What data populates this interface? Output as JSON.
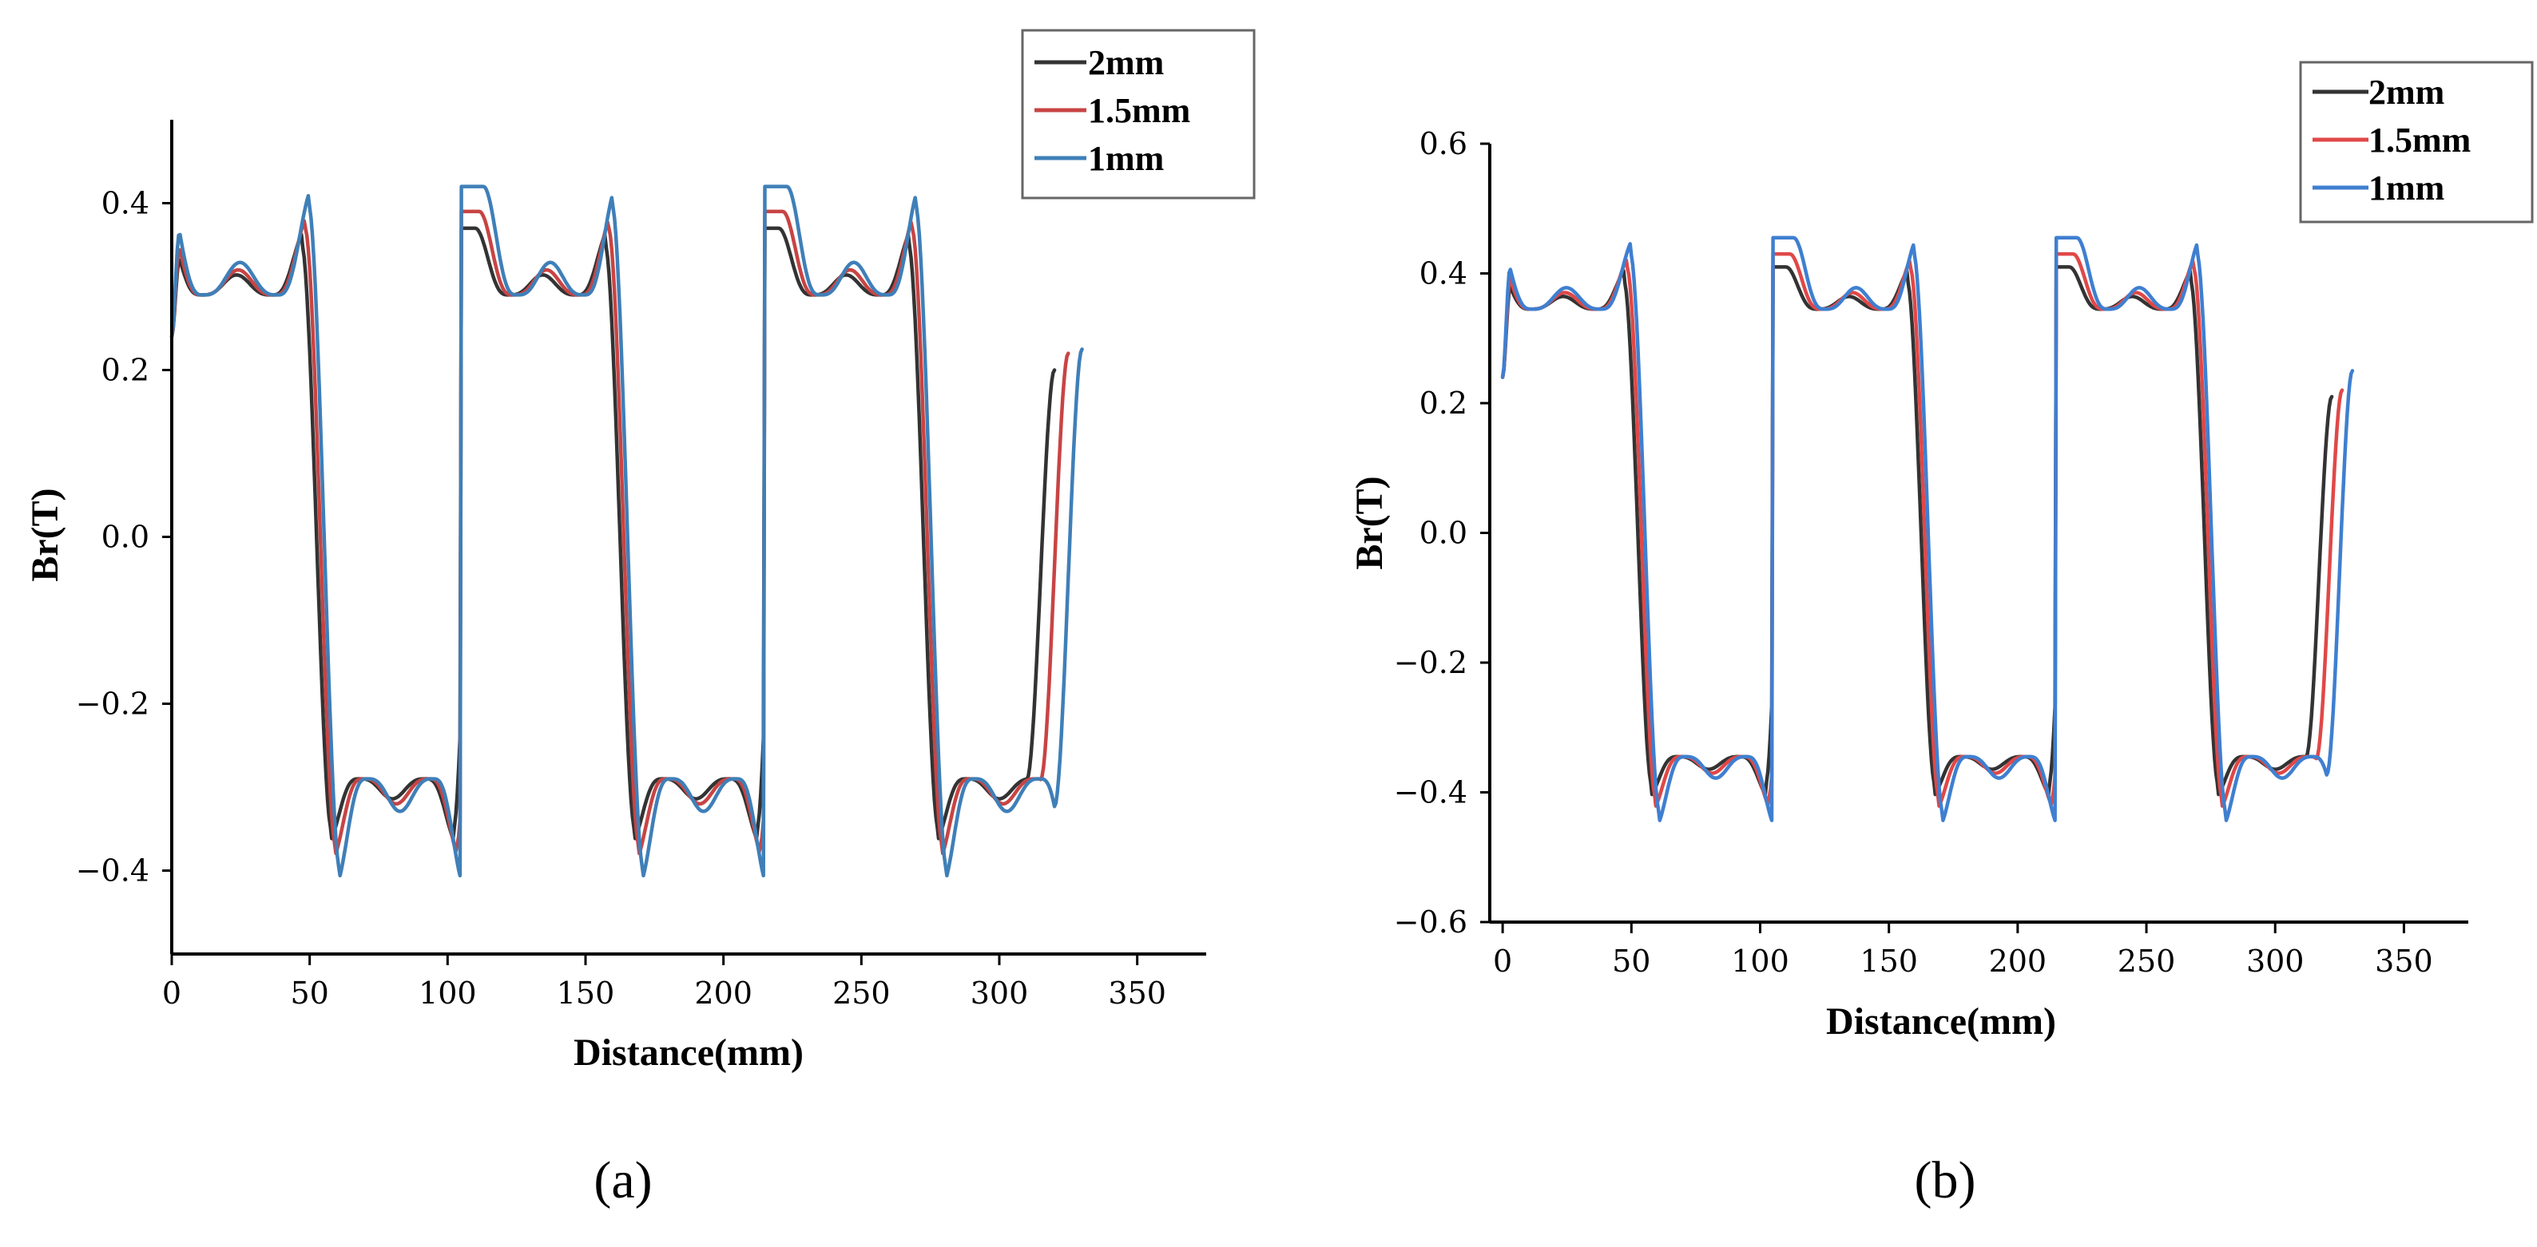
{
  "chart_data": [
    {
      "type": "line",
      "caption": "(a)",
      "xlabel": "Distance(mm)",
      "ylabel": "Br(T)",
      "xlim": [
        0,
        375
      ],
      "ylim": [
        -0.5,
        0.5
      ],
      "xticks": [
        0,
        50,
        100,
        150,
        200,
        250,
        300,
        350
      ],
      "yticks": [
        -0.4,
        -0.2,
        0.0,
        0.2,
        0.4
      ],
      "ytick_labels": [
        "−0.4",
        "−0.2",
        "0.0",
        "0.2",
        "0.4"
      ],
      "xtick_labels": [
        "0",
        "50",
        "100",
        "150",
        "200",
        "250",
        "300",
        "350"
      ],
      "legend_position": "top-right",
      "series": [
        {
          "name": "2mm",
          "color": "#333333",
          "peak": 0.37,
          "dip": 0.29,
          "shift": 0,
          "end_x": 320,
          "end_y": 0.2
        },
        {
          "name": "1.5mm",
          "color": "#c84444",
          "peak": 0.39,
          "dip": 0.29,
          "shift": 2.5,
          "end_x": 325,
          "end_y": 0.22
        },
        {
          "name": "1mm",
          "color": "#3f7fb8",
          "peak": 0.42,
          "dip": 0.29,
          "shift": 5,
          "end_x": 330,
          "end_y": 0.225
        }
      ]
    },
    {
      "type": "line",
      "caption": "(b)",
      "xlabel": "Distance(mm)",
      "ylabel": "Br(T)",
      "xlim": [
        -5,
        375
      ],
      "ylim": [
        -0.6,
        0.6
      ],
      "xticks": [
        0,
        50,
        100,
        150,
        200,
        250,
        300,
        350
      ],
      "yticks": [
        -0.6,
        -0.4,
        -0.2,
        0.0,
        0.2,
        0.4,
        0.6
      ],
      "ytick_labels": [
        "−0.6",
        "−0.4",
        "−0.2",
        "0.0",
        "0.2",
        "0.4",
        "0.6"
      ],
      "xtick_labels": [
        "0",
        "50",
        "100",
        "150",
        "200",
        "250",
        "300",
        "350"
      ],
      "legend_position": "top-right",
      "series": [
        {
          "name": "2mm",
          "color": "#333333",
          "peak": 0.41,
          "dip": 0.345,
          "shift": 0,
          "end_x": 322,
          "end_y": 0.21
        },
        {
          "name": "1.5mm",
          "color": "#e04848",
          "peak": 0.43,
          "dip": 0.345,
          "shift": 2.5,
          "end_x": 326,
          "end_y": 0.22
        },
        {
          "name": "1mm",
          "color": "#3f7fd0",
          "peak": 0.455,
          "dip": 0.345,
          "shift": 5,
          "end_x": 330,
          "end_y": 0.25
        }
      ]
    }
  ]
}
